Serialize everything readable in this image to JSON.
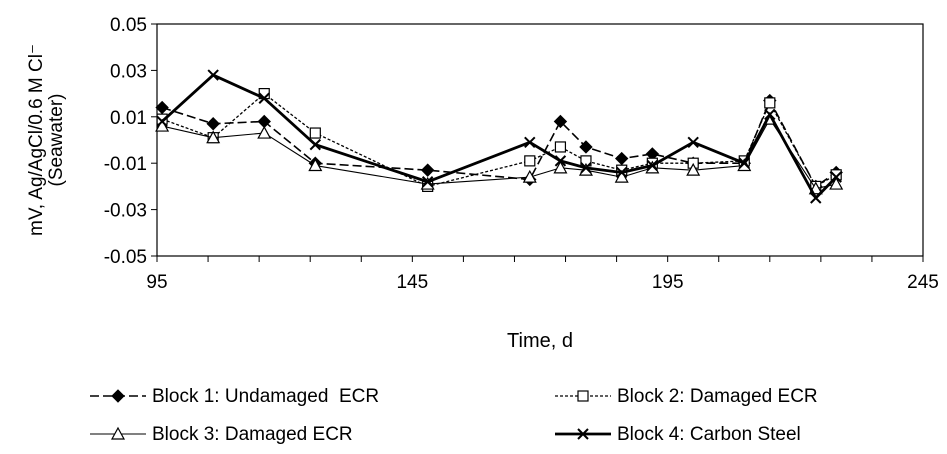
{
  "chart_data": {
    "type": "line",
    "title": "",
    "xlabel": "Time, d",
    "ylabel_lines": [
      "mV, Ag/AgCl/0.6 M Cl⁻",
      "(Seawater)"
    ],
    "xlim": [
      95,
      245
    ],
    "ylim": [
      -0.05,
      0.05
    ],
    "xticks": [
      95,
      145,
      195,
      245
    ],
    "yticks": [
      -0.05,
      -0.03,
      -0.01,
      0.01,
      0.03,
      0.05
    ],
    "xtick_labels": [
      "95",
      "145",
      "195",
      "245"
    ],
    "ytick_labels": [
      "-0.05",
      "-0.03",
      "-0.01",
      "0.01",
      "0.03",
      "0.05"
    ],
    "grid": false,
    "legend_position": "bottom",
    "series": [
      {
        "name": "Block 1: Undamaged  ECR",
        "style": "dashed",
        "marker": "diamond-filled",
        "x": [
          96,
          106,
          116,
          126,
          148,
          168,
          174,
          179,
          186,
          192,
          200,
          210,
          215,
          224,
          228
        ],
        "y": [
          0.014,
          0.007,
          0.008,
          -0.01,
          -0.013,
          -0.017,
          0.008,
          -0.003,
          -0.008,
          -0.006,
          -0.01,
          -0.01,
          0.017,
          -0.02,
          -0.014
        ]
      },
      {
        "name": "Block 2: Damaged ECR",
        "style": "dotted",
        "marker": "square-open",
        "x": [
          96,
          106,
          116,
          126,
          148,
          168,
          174,
          179,
          186,
          192,
          200,
          210,
          215,
          224,
          228
        ],
        "y": [
          0.009,
          0.001,
          0.02,
          0.003,
          -0.02,
          -0.009,
          -0.003,
          -0.009,
          -0.013,
          -0.01,
          -0.01,
          -0.009,
          0.016,
          -0.02,
          -0.015
        ]
      },
      {
        "name": "Block 3: Damaged ECR",
        "style": "solid-thin",
        "marker": "triangle-open",
        "x": [
          96,
          106,
          116,
          126,
          148,
          168,
          174,
          179,
          186,
          192,
          200,
          210,
          215,
          224,
          228
        ],
        "y": [
          0.006,
          0.001,
          0.003,
          -0.011,
          -0.019,
          -0.016,
          -0.012,
          -0.013,
          -0.016,
          -0.012,
          -0.013,
          -0.011,
          0.009,
          -0.021,
          -0.019
        ]
      },
      {
        "name": "Block 4: Carbon Steel",
        "style": "solid-thick",
        "marker": "x",
        "x": [
          96,
          106,
          116,
          126,
          148,
          168,
          174,
          179,
          186,
          192,
          200,
          210,
          215,
          224,
          228
        ],
        "y": [
          0.008,
          0.028,
          0.018,
          -0.002,
          -0.018,
          -0.001,
          -0.009,
          -0.012,
          -0.014,
          -0.011,
          -0.001,
          -0.01,
          0.011,
          -0.025,
          -0.016
        ]
      }
    ]
  }
}
